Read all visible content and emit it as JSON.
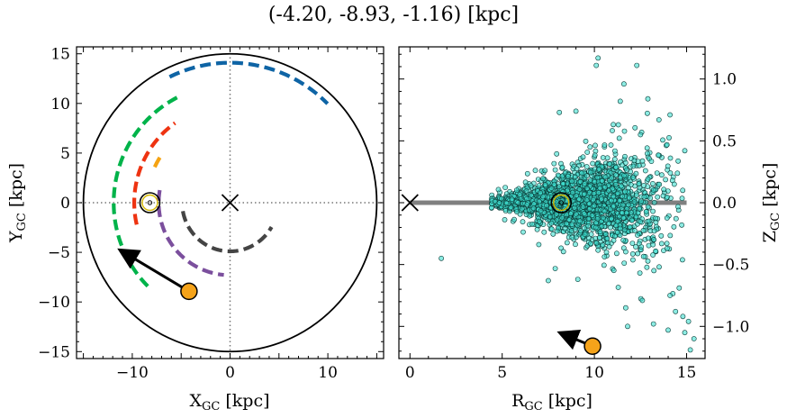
{
  "title": "(-4.20, -8.93, -1.16) [kpc]",
  "chart_data": [
    {
      "type": "line",
      "panel": "left",
      "xlabel": "X",
      "xlabel_sub": "GC",
      "xlabel_unit": " [kpc]",
      "ylabel": "Y",
      "ylabel_sub": "GC",
      "ylabel_unit": " [kpc]",
      "xlim": [
        -15.7,
        15.7
      ],
      "ylim": [
        -15.7,
        15.7
      ],
      "xticks": [
        -10,
        0,
        10
      ],
      "xtick_labels": [
        "−10",
        "0",
        "10"
      ],
      "yticks": [
        -15,
        -10,
        -5,
        0,
        5,
        10,
        15
      ],
      "ytick_labels": [
        "−15",
        "−10",
        "−5",
        "0",
        "5",
        "10",
        "15"
      ],
      "grid": false,
      "boundary_circle_radius": 15,
      "spiral_arms": [
        {
          "color": "#444444",
          "radius": 4.9,
          "start_deg": 190,
          "end_deg": 330
        },
        {
          "color": "#7b4f9d",
          "radius": 7.3,
          "start_deg": 170,
          "end_deg": 265
        },
        {
          "color": "#ee3311",
          "radius": 9.8,
          "start_deg": 193,
          "end_deg": 125
        },
        {
          "color": "#00b34a",
          "radius": 11.9,
          "start_deg": 225,
          "end_deg": 116
        },
        {
          "color": "#f5a312",
          "radius": 8.5,
          "start_deg": 155,
          "end_deg": 145
        },
        {
          "color": "#0e64a5",
          "radius": 14.1,
          "start_deg": 116,
          "end_deg": 45
        }
      ],
      "center_marker": {
        "x": 0,
        "y": 0,
        "symbol": "x"
      },
      "sun": {
        "x": -8.2,
        "y": 0.0,
        "symbol": "sun"
      },
      "object": {
        "x": -4.2,
        "y": -8.93,
        "color": "#f5a31a"
      },
      "velocity_arrow": {
        "from": [
          -4.2,
          -8.93
        ],
        "to": [
          -11.3,
          -4.75
        ]
      }
    },
    {
      "type": "scatter",
      "panel": "right",
      "xlabel": "R",
      "xlabel_sub": "GC",
      "xlabel_unit": " [kpc]",
      "ylabel": "Z",
      "ylabel_sub": "GC",
      "ylabel_unit": " [kpc]",
      "xlim": [
        -0.6,
        16.0
      ],
      "ylim": [
        -1.26,
        1.26
      ],
      "xticks": [
        0,
        5,
        10,
        15
      ],
      "xtick_labels": [
        "0",
        "5",
        "10",
        "15"
      ],
      "yticks": [
        -1.0,
        -0.5,
        0.0,
        0.5,
        1.0
      ],
      "ytick_labels": [
        "−1.0",
        "−0.5",
        "0.0",
        "0.5",
        "1.0"
      ],
      "grid": false,
      "disk_line": {
        "x": [
          0,
          15
        ],
        "y": 0,
        "color": "#808080"
      },
      "center_marker": {
        "x": 0,
        "y": 0,
        "symbol": "x"
      },
      "sun": {
        "x": 8.2,
        "y": 0.0,
        "symbol": "sun"
      },
      "object": {
        "x": 9.9,
        "y": -1.16,
        "color": "#f5a31a"
      },
      "velocity_arrow": {
        "from": [
          9.9,
          -1.16
        ],
        "to": [
          8.1,
          -1.05
        ]
      },
      "point_color": "#40e0d0",
      "stars": {
        "count": 2200,
        "outliers": [
          [
            10.2,
            1.17
          ],
          [
            10.1,
            1.11
          ],
          [
            12.3,
            1.11
          ],
          [
            11.6,
            0.96
          ],
          [
            12.9,
            0.84
          ],
          [
            14.1,
            0.71
          ],
          [
            1.7,
            -0.45
          ],
          [
            7.5,
            -0.63
          ],
          [
            9.1,
            -0.62
          ],
          [
            11.7,
            -0.85
          ],
          [
            14.1,
            -0.75
          ],
          [
            14.4,
            -0.88
          ],
          [
            14.8,
            -0.92
          ],
          [
            15.1,
            -0.96
          ],
          [
            11.8,
            -1.0
          ],
          [
            14.0,
            -1.03
          ],
          [
            14.9,
            -1.05
          ],
          [
            15.4,
            -1.1
          ],
          [
            15.2,
            -1.19
          ],
          [
            10.1,
            -1.18
          ],
          [
            13.2,
            -0.98
          ],
          [
            12.6,
            -0.79
          ],
          [
            14.6,
            -0.69
          ],
          [
            13.5,
            0.67
          ],
          [
            12.5,
            0.55
          ],
          [
            11.4,
            0.82
          ],
          [
            9.0,
            0.74
          ],
          [
            8.1,
            0.73
          ],
          [
            11.3,
            0.63
          ],
          [
            14.9,
            0.42
          ]
        ]
      }
    }
  ]
}
